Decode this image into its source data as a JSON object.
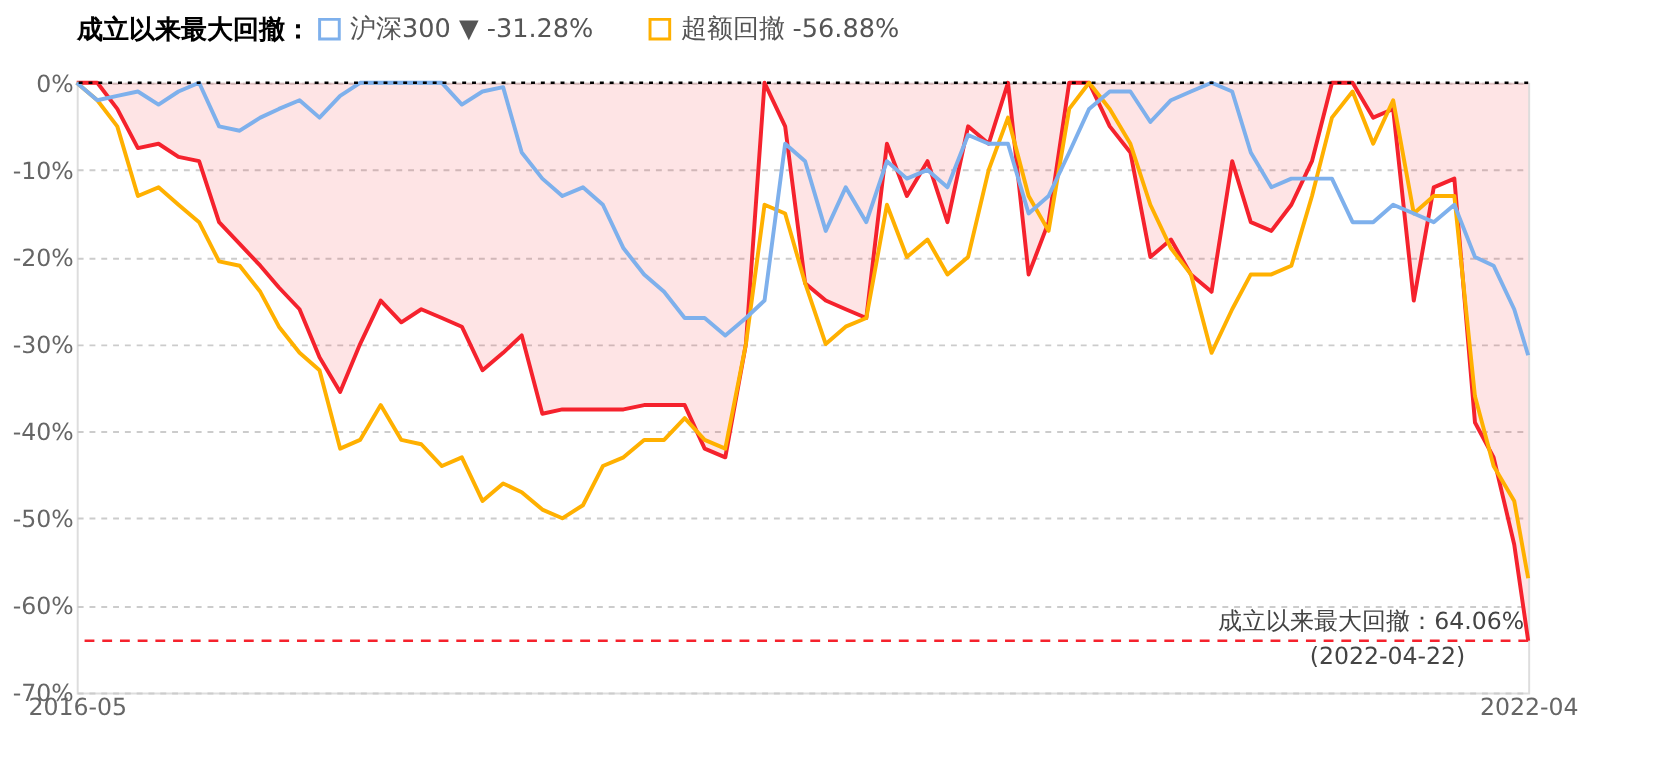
{
  "chart_data": {
    "type": "line",
    "legend_title": "成立以来最大回撤：",
    "legend": "top",
    "x": [
      "2016-05",
      "2016-06",
      "2016-07",
      "2016-08",
      "2016-09",
      "2016-10",
      "2016-11",
      "2016-12",
      "2017-01",
      "2017-02",
      "2017-03",
      "2017-04",
      "2017-05",
      "2017-06",
      "2017-07",
      "2017-08",
      "2017-09",
      "2017-10",
      "2017-11",
      "2017-12",
      "2018-01",
      "2018-02",
      "2018-03",
      "2018-04",
      "2018-05",
      "2018-06",
      "2018-07",
      "2018-08",
      "2018-09",
      "2018-10",
      "2018-11",
      "2018-12",
      "2019-01",
      "2019-02",
      "2019-03",
      "2019-04",
      "2019-05",
      "2019-06",
      "2019-07",
      "2019-08",
      "2019-09",
      "2019-10",
      "2019-11",
      "2019-12",
      "2020-01",
      "2020-02",
      "2020-03",
      "2020-04",
      "2020-05",
      "2020-06",
      "2020-07",
      "2020-08",
      "2020-09",
      "2020-10",
      "2020-11",
      "2020-12",
      "2021-01",
      "2021-02",
      "2021-03",
      "2021-04",
      "2021-05",
      "2021-06",
      "2021-07",
      "2021-08",
      "2021-09",
      "2021-10",
      "2021-11",
      "2021-12",
      "2022-01",
      "2022-02",
      "2022-03",
      "2022-04",
      "2022-04-22"
    ],
    "series": [
      {
        "type": "area",
        "color": "#f5222d",
        "values": [
          0,
          0,
          -3,
          -7.5,
          -7,
          -8.5,
          -9,
          -16,
          -18.5,
          -21,
          -23.5,
          -26,
          -31.5,
          -35.5,
          -30,
          -25,
          -27.5,
          -26,
          -27,
          -28,
          -33,
          -31,
          -29,
          -38,
          -37.5,
          -37.5,
          -37.5,
          -37.5,
          -37,
          -37,
          -37,
          -42,
          -43,
          -30,
          0,
          -5,
          -23,
          -25,
          -26,
          -27,
          -7,
          -13,
          -9,
          -16,
          -5,
          -7,
          0,
          -22,
          -16,
          0,
          0,
          -5,
          -8,
          -20,
          -18,
          -22,
          -24,
          -9,
          -16,
          -17,
          -14,
          -9,
          0,
          0,
          -4,
          -3,
          -25,
          -12,
          -11,
          -39,
          -43,
          -53,
          -64.06
        ]
      },
      {
        "name": "沪深300 ▼ -31.28%",
        "color": "#7eb0ec",
        "values": [
          0,
          -2,
          -1.5,
          -1,
          -2.5,
          -1,
          0,
          -5,
          -5.5,
          -4,
          -3,
          -2,
          -4,
          -1.5,
          0,
          0,
          0,
          0,
          0,
          -2.5,
          -1,
          -0.5,
          -8,
          -11,
          -13,
          -12,
          -14,
          -19,
          -22,
          -24,
          -27,
          -27,
          -29,
          -27,
          -25,
          -7,
          -9,
          -17,
          -12,
          -16,
          -9,
          -11,
          -10,
          -12,
          -6,
          -7,
          -7,
          -15,
          -13,
          -8,
          -3,
          -1,
          -1,
          -4.5,
          -2,
          -1,
          0,
          -1,
          -8,
          -12,
          -11,
          -11,
          -11,
          -16,
          -16,
          -14,
          -15,
          -16,
          -14,
          -20,
          -21,
          -26,
          -31.28
        ]
      },
      {
        "name": "超额回撤 -56.88%",
        "color": "#ffb000",
        "values": [
          0,
          -2,
          -5,
          -13,
          -12,
          -14,
          -16,
          -20.5,
          -21,
          -24,
          -28,
          -31,
          -33,
          -42,
          -41,
          -37,
          -41,
          -41.5,
          -44,
          -43,
          -48,
          -46,
          -47,
          -49,
          -50,
          -48.5,
          -44,
          -43,
          -41,
          -41,
          -38.5,
          -41,
          -42,
          -30,
          -14,
          -15,
          -23,
          -30,
          -28,
          -27,
          -14,
          -20,
          -18,
          -22,
          -20,
          -10,
          -4,
          -13,
          -17,
          -3,
          0,
          -3,
          -7,
          -14,
          -19,
          -22,
          -31,
          -26,
          -22,
          -22,
          -21,
          -13,
          -4,
          -1,
          -7,
          -2,
          -15,
          -13,
          -13,
          -36,
          -44,
          -48,
          -56.88
        ]
      }
    ],
    "xlim": [
      "2016-05",
      "2022-04-22"
    ],
    "xticks": [
      {
        "value": "2016-05",
        "label": "2016-05"
      },
      {
        "value": "2022-04-22",
        "label": "2022-04"
      }
    ],
    "ylim": [
      -70,
      0
    ],
    "yticks": [
      {
        "value": -70,
        "label": "-70%"
      },
      {
        "value": -60,
        "label": "-60%"
      },
      {
        "value": -50,
        "label": "-50%"
      },
      {
        "value": -40,
        "label": "-40%"
      },
      {
        "value": -30,
        "label": "-30%"
      },
      {
        "value": -20,
        "label": "-20%"
      },
      {
        "value": -10,
        "label": "-10%"
      },
      {
        "value": 0,
        "label": "0%"
      }
    ],
    "grid": "y",
    "ref_lines": [
      {
        "axis": "y",
        "value": 0,
        "color": "#000000",
        "line_style": "dotted"
      },
      {
        "axis": "y",
        "value": -64.06,
        "color": "#f5222d",
        "line_style": "dashed",
        "label": "成立以来最大回撤：64.06%\n(2022-04-22)"
      }
    ]
  }
}
